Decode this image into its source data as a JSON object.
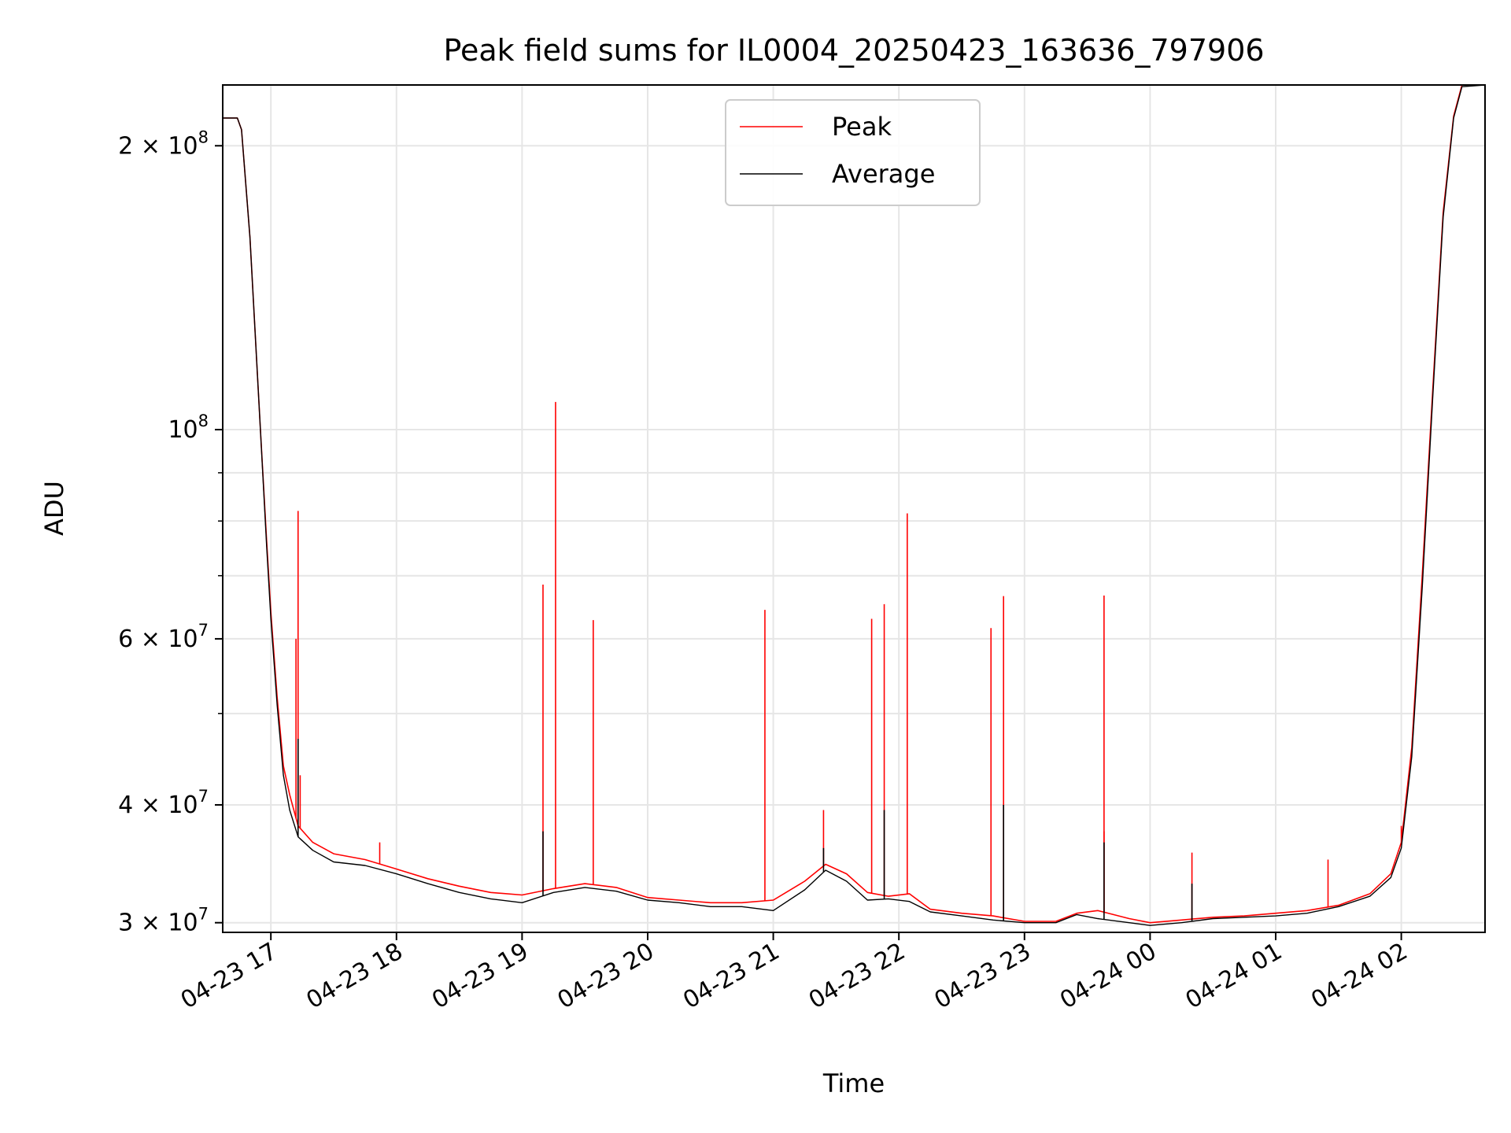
{
  "chart_data": {
    "type": "line",
    "title": "Peak field sums for IL0004_20250423_163636_797906",
    "xlabel": "Time",
    "ylabel": "ADU",
    "y_scale": "log",
    "ylim": [
      29300000,
      232000000
    ],
    "xlim": [
      "2025-04-23 16:37",
      "2025-04-24 02:40"
    ],
    "grid": true,
    "legend_position": "top-center",
    "x_ticks": [
      {
        "t": "2025-04-23 17:00",
        "label": "04-23 17"
      },
      {
        "t": "2025-04-23 18:00",
        "label": "04-23 18"
      },
      {
        "t": "2025-04-23 19:00",
        "label": "04-23 19"
      },
      {
        "t": "2025-04-23 20:00",
        "label": "04-23 20"
      },
      {
        "t": "2025-04-23 21:00",
        "label": "04-23 21"
      },
      {
        "t": "2025-04-23 22:00",
        "label": "04-23 22"
      },
      {
        "t": "2025-04-23 23:00",
        "label": "04-23 23"
      },
      {
        "t": "2025-04-24 00:00",
        "label": "04-24 00"
      },
      {
        "t": "2025-04-24 01:00",
        "label": "04-24 01"
      },
      {
        "t": "2025-04-24 02:00",
        "label": "04-24 02"
      }
    ],
    "y_ticks": [
      {
        "value": 30000000,
        "mant": "3",
        "exp": "7"
      },
      {
        "value": 40000000,
        "mant": "4",
        "exp": "7"
      },
      {
        "value": 60000000,
        "mant": "6",
        "exp": "7"
      },
      {
        "value": 100000000,
        "mant": "",
        "exp": "8"
      },
      {
        "value": 200000000,
        "mant": "2",
        "exp": "8"
      }
    ],
    "y_minor": [
      50000000,
      70000000,
      80000000,
      90000000
    ],
    "series": [
      {
        "name": "Peak",
        "color": "#ff0000",
        "points": [
          [
            "2025-04-23 16:37",
            214000000
          ],
          [
            "2025-04-23 16:44",
            214000000
          ],
          [
            "2025-04-23 16:46",
            208000000
          ],
          [
            "2025-04-23 16:50",
            160000000
          ],
          [
            "2025-04-23 16:55",
            100000000
          ],
          [
            "2025-04-23 16:58",
            76000000
          ],
          [
            "2025-04-23 17:00",
            64000000
          ],
          [
            "2025-04-23 17:03",
            52000000
          ],
          [
            "2025-04-23 17:06",
            44000000
          ],
          [
            "2025-04-23 17:09",
            41000000
          ],
          [
            "2025-04-23 17:13",
            38000000
          ],
          [
            "2025-04-23 17:20",
            36500000
          ],
          [
            "2025-04-23 17:30",
            35500000
          ],
          [
            "2025-04-23 17:45",
            35000000
          ],
          [
            "2025-04-23 18:00",
            34200000
          ],
          [
            "2025-04-23 18:15",
            33400000
          ],
          [
            "2025-04-23 18:30",
            32800000
          ],
          [
            "2025-04-23 18:45",
            32300000
          ],
          [
            "2025-04-23 19:00",
            32100000
          ],
          [
            "2025-04-23 19:15",
            32600000
          ],
          [
            "2025-04-23 19:30",
            33000000
          ],
          [
            "2025-04-23 19:45",
            32700000
          ],
          [
            "2025-04-23 20:00",
            31900000
          ],
          [
            "2025-04-23 20:15",
            31700000
          ],
          [
            "2025-04-23 20:30",
            31500000
          ],
          [
            "2025-04-23 20:45",
            31500000
          ],
          [
            "2025-04-23 21:00",
            31700000
          ],
          [
            "2025-04-23 21:15",
            33200000
          ],
          [
            "2025-04-23 21:25",
            34600000
          ],
          [
            "2025-04-23 21:35",
            33800000
          ],
          [
            "2025-04-23 21:45",
            32300000
          ],
          [
            "2025-04-23 21:55",
            32000000
          ],
          [
            "2025-04-23 22:05",
            32200000
          ],
          [
            "2025-04-23 22:15",
            31000000
          ],
          [
            "2025-04-23 22:30",
            30700000
          ],
          [
            "2025-04-23 22:45",
            30500000
          ],
          [
            "2025-04-23 23:00",
            30100000
          ],
          [
            "2025-04-23 23:15",
            30100000
          ],
          [
            "2025-04-23 23:25",
            30700000
          ],
          [
            "2025-04-23 23:35",
            30900000
          ],
          [
            "2025-04-23 23:50",
            30300000
          ],
          [
            "2025-04-24 00:00",
            30000000
          ],
          [
            "2025-04-24 00:15",
            30200000
          ],
          [
            "2025-04-24 00:30",
            30400000
          ],
          [
            "2025-04-24 00:45",
            30500000
          ],
          [
            "2025-04-24 01:00",
            30700000
          ],
          [
            "2025-04-24 01:15",
            30900000
          ],
          [
            "2025-04-24 01:30",
            31300000
          ],
          [
            "2025-04-24 01:45",
            32200000
          ],
          [
            "2025-04-24 01:55",
            33800000
          ],
          [
            "2025-04-24 02:00",
            36500000
          ],
          [
            "2025-04-24 02:05",
            46000000
          ],
          [
            "2025-04-24 02:10",
            70000000
          ],
          [
            "2025-04-24 02:15",
            110000000
          ],
          [
            "2025-04-24 02:20",
            170000000
          ],
          [
            "2025-04-24 02:25",
            215000000
          ],
          [
            "2025-04-24 02:29",
            232000000
          ],
          [
            "2025-04-24 02:40",
            232000000
          ]
        ],
        "spikes": [
          [
            "2025-04-23 17:13",
            82000000
          ],
          [
            "2025-04-23 17:12",
            60000000
          ],
          [
            "2025-04-23 17:14",
            43000000
          ],
          [
            "2025-04-23 17:52",
            36500000
          ],
          [
            "2025-04-23 19:10",
            68500000
          ],
          [
            "2025-04-23 19:16",
            107000000
          ],
          [
            "2025-04-23 19:34",
            62800000
          ],
          [
            "2025-04-23 20:56",
            64400000
          ],
          [
            "2025-04-23 21:24",
            39500000
          ],
          [
            "2025-04-23 21:47",
            63000000
          ],
          [
            "2025-04-23 21:53",
            65300000
          ],
          [
            "2025-04-23 22:04",
            81500000
          ],
          [
            "2025-04-23 22:44",
            61600000
          ],
          [
            "2025-04-23 22:50",
            66600000
          ],
          [
            "2025-04-23 23:38",
            66700000
          ],
          [
            "2025-04-23 23:38",
            37500000
          ],
          [
            "2025-04-24 00:20",
            35600000
          ],
          [
            "2025-04-24 01:25",
            35000000
          ],
          [
            "2025-04-24 02:00",
            38000000
          ]
        ]
      },
      {
        "name": "Average",
        "color": "#000000",
        "points": [
          [
            "2025-04-23 16:37",
            214000000
          ],
          [
            "2025-04-23 16:44",
            214000000
          ],
          [
            "2025-04-23 16:46",
            208000000
          ],
          [
            "2025-04-23 16:50",
            160000000
          ],
          [
            "2025-04-23 16:55",
            100000000
          ],
          [
            "2025-04-23 16:58",
            75000000
          ],
          [
            "2025-04-23 17:00",
            63000000
          ],
          [
            "2025-04-23 17:03",
            51000000
          ],
          [
            "2025-04-23 17:06",
            43000000
          ],
          [
            "2025-04-23 17:09",
            39500000
          ],
          [
            "2025-04-23 17:13",
            37000000
          ],
          [
            "2025-04-23 17:20",
            35800000
          ],
          [
            "2025-04-23 17:30",
            34800000
          ],
          [
            "2025-04-23 17:45",
            34500000
          ],
          [
            "2025-04-23 18:00",
            33800000
          ],
          [
            "2025-04-23 18:15",
            33000000
          ],
          [
            "2025-04-23 18:30",
            32300000
          ],
          [
            "2025-04-23 18:45",
            31800000
          ],
          [
            "2025-04-23 19:00",
            31500000
          ],
          [
            "2025-04-23 19:15",
            32300000
          ],
          [
            "2025-04-23 19:30",
            32700000
          ],
          [
            "2025-04-23 19:45",
            32400000
          ],
          [
            "2025-04-23 20:00",
            31700000
          ],
          [
            "2025-04-23 20:15",
            31500000
          ],
          [
            "2025-04-23 20:30",
            31200000
          ],
          [
            "2025-04-23 20:45",
            31200000
          ],
          [
            "2025-04-23 21:00",
            30900000
          ],
          [
            "2025-04-23 21:15",
            32500000
          ],
          [
            "2025-04-23 21:25",
            34100000
          ],
          [
            "2025-04-23 21:35",
            33200000
          ],
          [
            "2025-04-23 21:45",
            31700000
          ],
          [
            "2025-04-23 21:55",
            31800000
          ],
          [
            "2025-04-23 22:05",
            31600000
          ],
          [
            "2025-04-23 22:15",
            30800000
          ],
          [
            "2025-04-23 22:30",
            30500000
          ],
          [
            "2025-04-23 22:45",
            30200000
          ],
          [
            "2025-04-23 23:00",
            30000000
          ],
          [
            "2025-04-23 23:15",
            30000000
          ],
          [
            "2025-04-23 23:25",
            30600000
          ],
          [
            "2025-04-23 23:35",
            30300000
          ],
          [
            "2025-04-23 23:50",
            30000000
          ],
          [
            "2025-04-24 00:00",
            29800000
          ],
          [
            "2025-04-24 00:15",
            30000000
          ],
          [
            "2025-04-24 00:30",
            30300000
          ],
          [
            "2025-04-24 00:45",
            30400000
          ],
          [
            "2025-04-24 01:00",
            30500000
          ],
          [
            "2025-04-24 01:15",
            30700000
          ],
          [
            "2025-04-24 01:30",
            31200000
          ],
          [
            "2025-04-24 01:45",
            32000000
          ],
          [
            "2025-04-24 01:55",
            33500000
          ],
          [
            "2025-04-24 02:00",
            36000000
          ],
          [
            "2025-04-24 02:05",
            45000000
          ],
          [
            "2025-04-24 02:10",
            68000000
          ],
          [
            "2025-04-24 02:15",
            108000000
          ],
          [
            "2025-04-24 02:20",
            168000000
          ],
          [
            "2025-04-24 02:25",
            214000000
          ],
          [
            "2025-04-24 02:29",
            231000000
          ],
          [
            "2025-04-24 02:40",
            232000000
          ]
        ],
        "spikes": [
          [
            "2025-04-23 17:13",
            47000000
          ],
          [
            "2025-04-23 19:10",
            37500000
          ],
          [
            "2025-04-23 21:24",
            36000000
          ],
          [
            "2025-04-23 21:53",
            39500000
          ],
          [
            "2025-04-23 22:50",
            40000000
          ],
          [
            "2025-04-23 23:38",
            36500000
          ],
          [
            "2025-04-24 00:20",
            33000000
          ]
        ]
      }
    ]
  }
}
